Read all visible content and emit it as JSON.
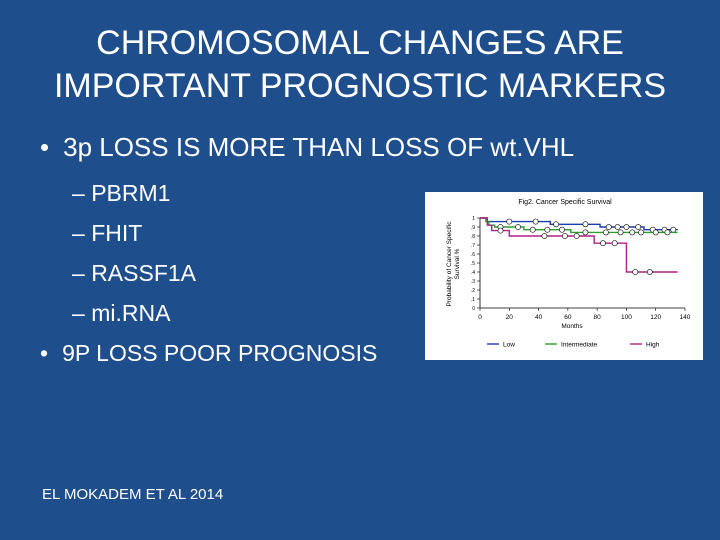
{
  "slide": {
    "title_line1": "CHROMOSOMAL CHANGES ARE",
    "title_line2": "IMPORTANT PROGNOSTIC MARKERS",
    "bullet_marker": "•",
    "sub_marker": "–",
    "bullet1": "3p LOSS IS MORE THAN LOSS OF wt.VHL",
    "subbullets": [
      "PBRM1",
      "FHIT",
      "RASSF1A",
      "mi.RNA"
    ],
    "bullet2": "9P LOSS POOR PROGNOSIS",
    "citation": "EL MOKADEM ET AL 2014"
  },
  "chart_data": {
    "type": "line",
    "title": "Fig2. Cancer Specific Survival",
    "ylabel_line1": "Probability of Cancer Specific",
    "ylabel_line2": "Survival %",
    "xlabel": "Months",
    "xlim": [
      0,
      140
    ],
    "ylim": [
      0,
      1
    ],
    "xticks": [
      0,
      20,
      40,
      60,
      80,
      100,
      120,
      140
    ],
    "yticks": [
      "1",
      ".9",
      ".8",
      ".7",
      ".6",
      ".5",
      ".4",
      ".3",
      ".2",
      ".1",
      "0"
    ],
    "legend_position": "bottom",
    "series": [
      {
        "name": "Low",
        "color": "#1a3fb0",
        "steps": [
          [
            0,
            1
          ],
          [
            5,
            0.96
          ],
          [
            10,
            0.96
          ],
          [
            48,
            0.96
          ],
          [
            48,
            0.93
          ],
          [
            82,
            0.93
          ],
          [
            82,
            0.9
          ],
          [
            112,
            0.9
          ],
          [
            112,
            0.87
          ],
          [
            135,
            0.87
          ]
        ],
        "censored": [
          [
            20,
            0.96
          ],
          [
            38,
            0.96
          ],
          [
            52,
            0.93
          ],
          [
            72,
            0.93
          ],
          [
            88,
            0.9
          ],
          [
            94,
            0.9
          ],
          [
            100,
            0.9
          ],
          [
            108,
            0.9
          ],
          [
            118,
            0.87
          ],
          [
            126,
            0.87
          ],
          [
            132,
            0.87
          ]
        ]
      },
      {
        "name": "Intermediate",
        "color": "#2aa02a",
        "steps": [
          [
            0,
            1
          ],
          [
            4,
            0.96
          ],
          [
            6,
            0.92
          ],
          [
            10,
            0.9
          ],
          [
            30,
            0.9
          ],
          [
            30,
            0.87
          ],
          [
            62,
            0.87
          ],
          [
            62,
            0.84
          ],
          [
            135,
            0.84
          ]
        ],
        "censored": [
          [
            14,
            0.9
          ],
          [
            26,
            0.9
          ],
          [
            36,
            0.87
          ],
          [
            46,
            0.87
          ],
          [
            56,
            0.87
          ],
          [
            72,
            0.84
          ],
          [
            86,
            0.84
          ],
          [
            96,
            0.84
          ],
          [
            104,
            0.84
          ],
          [
            110,
            0.84
          ],
          [
            120,
            0.84
          ],
          [
            128,
            0.84
          ]
        ]
      },
      {
        "name": "High",
        "color": "#b0208a",
        "steps": [
          [
            0,
            1
          ],
          [
            5,
            0.92
          ],
          [
            8,
            0.86
          ],
          [
            20,
            0.86
          ],
          [
            20,
            0.8
          ],
          [
            78,
            0.8
          ],
          [
            78,
            0.72
          ],
          [
            100,
            0.72
          ],
          [
            100,
            0.4
          ],
          [
            135,
            0.4
          ]
        ],
        "censored": [
          [
            14,
            0.86
          ],
          [
            44,
            0.8
          ],
          [
            58,
            0.8
          ],
          [
            66,
            0.8
          ],
          [
            84,
            0.72
          ],
          [
            92,
            0.72
          ],
          [
            106,
            0.4
          ],
          [
            116,
            0.4
          ]
        ]
      }
    ]
  }
}
